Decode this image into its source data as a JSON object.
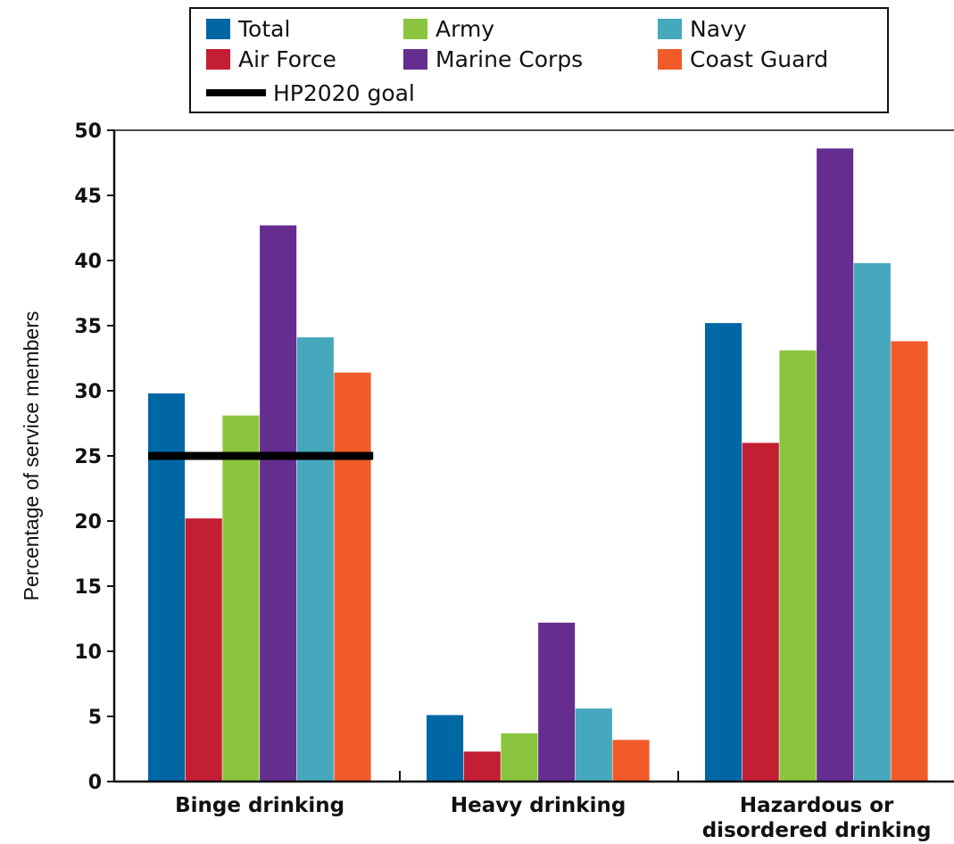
{
  "chart_data": {
    "type": "bar",
    "title": "",
    "xlabel": "",
    "ylabel": "Percentage of service members",
    "ylim": [
      0,
      50
    ],
    "yticks": [
      0,
      5,
      10,
      15,
      20,
      25,
      30,
      35,
      40,
      45,
      50
    ],
    "categories": [
      [
        "Binge drinking"
      ],
      [
        "Heavy drinking"
      ],
      [
        "Hazardous or",
        "disordered drinking"
      ]
    ],
    "series": [
      {
        "name": "Total",
        "color": "#0067a5",
        "values": [
          29.8,
          5.1,
          35.2
        ]
      },
      {
        "name": "Air Force",
        "color": "#c41e34",
        "values": [
          20.2,
          2.3,
          26.0
        ]
      },
      {
        "name": "Army",
        "color": "#8bc53f",
        "values": [
          28.1,
          3.7,
          33.1
        ]
      },
      {
        "name": "Marine Corps",
        "color": "#662d91",
        "values": [
          42.7,
          12.2,
          48.6
        ]
      },
      {
        "name": "Navy",
        "color": "#46a8bd",
        "values": [
          34.1,
          5.6,
          39.8
        ]
      },
      {
        "name": "Coast Guard",
        "color": "#f15a29",
        "values": [
          31.4,
          3.2,
          33.8
        ]
      }
    ],
    "reference_line": {
      "name": "HP2020 goal",
      "value": 25,
      "category_index": 0,
      "color": "#000000"
    },
    "legend": {
      "placement": "top",
      "order": [
        "Total",
        "Army",
        "Navy",
        "Air Force",
        "Marine Corps",
        "Coast Guard",
        "HP2020 goal"
      ]
    },
    "grid": false
  }
}
